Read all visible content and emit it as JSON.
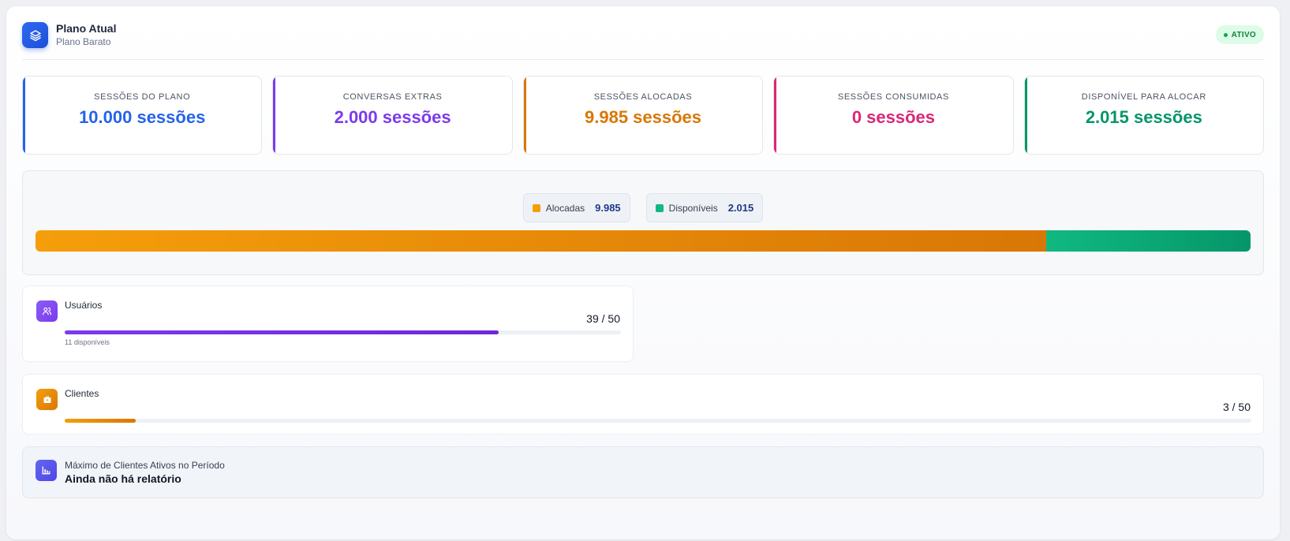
{
  "header": {
    "title": "Plano Atual",
    "subtitle": "Plano Barato",
    "status": "ATIVO",
    "icon": "layers-icon"
  },
  "stats": [
    {
      "label": "SESSÕES DO PLANO",
      "value": "10.000 sessões",
      "color": "#2563eb"
    },
    {
      "label": "CONVERSAS EXTRAS",
      "value": "2.000 sessões",
      "color": "#7c3aed"
    },
    {
      "label": "SESSÕES ALOCADAS",
      "value": "9.985 sessões",
      "color": "#d97706"
    },
    {
      "label": "SESSÕES CONSUMIDAS",
      "value": "0 sessões",
      "color": "#db2777"
    },
    {
      "label": "DISPONÍVEL PARA ALOCAR",
      "value": "2.015 sessões",
      "color": "#059669"
    }
  ],
  "distribution": {
    "allocated_label": "Alocadas",
    "allocated_value": "9.985",
    "available_label": "Disponíveis",
    "available_value": "2.015",
    "allocated_fraction": 0.832,
    "colors": {
      "allocated": "#f59e0b",
      "available": "#10b981"
    }
  },
  "users": {
    "title": "Usuários",
    "count": "39 / 50",
    "available_note": "11 disponíveis",
    "fraction": 0.78,
    "color": "#7c3aed",
    "icon": "users-icon"
  },
  "clients": {
    "title": "Clientes",
    "count": "3 / 50",
    "fraction": 0.06,
    "color": "#f59e0b",
    "icon": "briefcase-icon"
  },
  "report": {
    "label": "Máximo de Clientes Ativos no Período",
    "value": "Ainda não há relatório",
    "icon": "bar-chart-icon"
  }
}
